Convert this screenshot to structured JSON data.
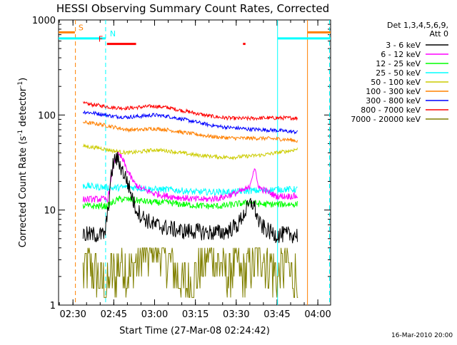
{
  "chart_data": {
    "type": "line",
    "title": "HESSI Observing Summary Count Rates, Corrected",
    "xlabel": "Start Time (27-Mar-08 02:24:42)",
    "ylabel": "Corrected Count Rate (s⁻¹ detector⁻¹)",
    "ylabel_parts": [
      "Corrected Count Rate (s",
      "-1",
      " detector",
      "-1",
      ")"
    ],
    "x_unit": "minutes since 02:24:42",
    "xlim": [
      0,
      100
    ],
    "ylim": [
      1,
      1000
    ],
    "y_scale": "log",
    "x_ticks": [
      {
        "label": "02:30",
        "value": 5.3
      },
      {
        "label": "02:45",
        "value": 20.3
      },
      {
        "label": "03:00",
        "value": 35.3
      },
      {
        "label": "03:15",
        "value": 50.3
      },
      {
        "label": "03:30",
        "value": 65.3
      },
      {
        "label": "03:45",
        "value": 80.3
      },
      {
        "label": "04:00",
        "value": 95.3
      }
    ],
    "y_ticks": [
      {
        "label": "1",
        "value": 1
      },
      {
        "label": "10",
        "value": 10
      },
      {
        "label": "100",
        "value": 100
      },
      {
        "label": "1000",
        "value": 1000
      }
    ],
    "legend": {
      "placement": "right",
      "header": [
        "Det 1,3,4,5,6,9,",
        "Att 0"
      ],
      "entries": [
        {
          "label": "3 - 6 keV",
          "color": "#000000"
        },
        {
          "label": "6 - 12 keV",
          "color": "#ff00ff"
        },
        {
          "label": "12 - 25 keV",
          "color": "#00ff00"
        },
        {
          "label": "25 - 50 keV",
          "color": "#00ffff"
        },
        {
          "label": "50 - 100 keV",
          "color": "#cccc00"
        },
        {
          "label": "100 - 300 keV",
          "color": "#ff8000"
        },
        {
          "label": "300 - 800 keV",
          "color": "#0000ff"
        },
        {
          "label": "800 - 7000 keV",
          "color": "#ff0000"
        },
        {
          "label": "7000 - 20000 keV",
          "color": "#808000"
        }
      ]
    },
    "series": [
      {
        "name": "3 - 6 keV",
        "color": "#000000",
        "x": [
          9,
          14,
          17,
          18,
          19,
          20,
          21,
          22,
          23,
          25,
          26,
          27,
          28,
          29,
          30,
          32,
          35,
          40,
          45,
          50,
          55,
          60,
          62,
          64,
          66,
          67,
          68,
          69,
          70,
          71,
          72,
          73,
          74,
          77,
          80,
          84,
          88
        ],
        "y": [
          5.5,
          5.5,
          5.5,
          9,
          18,
          30,
          35,
          33,
          28,
          21,
          17,
          14,
          11,
          10,
          9,
          8,
          7,
          6.5,
          6,
          6,
          5.8,
          5.8,
          6,
          6.5,
          7,
          8,
          9,
          10,
          11,
          12,
          11,
          8.5,
          7,
          6,
          5.5,
          5.5,
          5.5
        ]
      },
      {
        "name": "6 - 12 keV",
        "color": "#ff00ff",
        "x": [
          9,
          16,
          18,
          19,
          20,
          21,
          22,
          23,
          24,
          25,
          26,
          27,
          28,
          30,
          35,
          40,
          45,
          50,
          55,
          60,
          65,
          70,
          71,
          72,
          73,
          74,
          76,
          78,
          80,
          88
        ],
        "y": [
          13,
          13,
          13,
          18,
          28,
          35,
          38,
          36,
          32,
          27,
          24,
          21,
          19,
          17,
          15,
          14,
          13.5,
          13,
          13,
          13.5,
          15,
          17,
          22,
          28,
          20,
          17,
          16,
          15,
          14,
          14
        ]
      },
      {
        "name": "12 - 25 keV",
        "color": "#00ff00",
        "x": [
          9,
          14,
          18,
          20,
          22,
          25,
          30,
          35,
          40,
          45,
          50,
          55,
          60,
          65,
          70,
          75,
          80,
          88
        ],
        "y": [
          11,
          11,
          11,
          12,
          13,
          13,
          12.5,
          12,
          12,
          11.5,
          11.2,
          11,
          11,
          11.5,
          12,
          11.5,
          11.5,
          11.5
        ]
      },
      {
        "name": "25 - 50 keV",
        "color": "#00ffff",
        "x": [
          9,
          15,
          20,
          25,
          30,
          35,
          40,
          45,
          50,
          55,
          60,
          65,
          70,
          75,
          80,
          88
        ],
        "y": [
          18,
          17.5,
          17,
          17.5,
          17,
          16.5,
          16.5,
          16,
          15.5,
          15.5,
          15.5,
          15.5,
          16,
          16,
          16.5,
          16.5
        ]
      },
      {
        "name": "50 - 100 keV",
        "color": "#cccc00",
        "x": [
          9,
          15,
          20,
          25,
          30,
          35,
          40,
          45,
          50,
          55,
          60,
          65,
          70,
          75,
          80,
          85,
          88
        ],
        "y": [
          47,
          45,
          42,
          40,
          41,
          43,
          42,
          40,
          38,
          37,
          36,
          36,
          37,
          38,
          40,
          42,
          44
        ]
      },
      {
        "name": "100 - 300 keV",
        "color": "#ff8000",
        "x": [
          9,
          15,
          20,
          25,
          30,
          35,
          40,
          45,
          50,
          55,
          60,
          65,
          70,
          75,
          80,
          85,
          88
        ],
        "y": [
          84,
          80,
          75,
          70,
          70,
          72,
          70,
          66,
          63,
          60,
          58,
          57,
          57,
          57,
          56,
          55,
          53
        ]
      },
      {
        "name": "300 - 800 keV",
        "color": "#0000ff",
        "x": [
          9,
          15,
          20,
          25,
          30,
          35,
          40,
          45,
          50,
          55,
          60,
          65,
          70,
          75,
          80,
          85,
          88
        ],
        "y": [
          108,
          103,
          97,
          95,
          97,
          100,
          97,
          91,
          85,
          79,
          75,
          73,
          71,
          70,
          69,
          67,
          66
        ]
      },
      {
        "name": "800 - 7000 keV",
        "color": "#ff0000",
        "x": [
          9,
          15,
          20,
          25,
          30,
          35,
          40,
          45,
          50,
          55,
          60,
          65,
          70,
          75,
          80,
          85,
          88
        ],
        "y": [
          132,
          126,
          120,
          118,
          121,
          124,
          120,
          112,
          105,
          98,
          94,
          92,
          92,
          93,
          93,
          93,
          93
        ]
      },
      {
        "name": "7000 - 20000 keV",
        "color": "#808000",
        "style": "steps",
        "x": [
          9,
          11,
          14,
          17,
          20,
          23,
          26,
          29,
          32,
          35,
          38,
          41,
          44,
          47,
          50,
          53,
          56,
          59,
          62,
          65,
          68,
          71,
          74,
          77,
          80,
          83,
          86,
          88
        ],
        "y": [
          2,
          2.8,
          2,
          1.5,
          2,
          2.8,
          2,
          2.8,
          3.5,
          3.8,
          3.5,
          2.8,
          2,
          1.5,
          2,
          2.8,
          3.5,
          2.8,
          2,
          2.8,
          2,
          2.8,
          3.5,
          2.8,
          2,
          2.8,
          2,
          2
        ]
      }
    ],
    "state_bars": [
      {
        "label": "S",
        "color": "#ff8000",
        "y": 740,
        "segments": [
          [
            0,
            6
          ]
        ]
      },
      {
        "label": "",
        "color": "#ff8000",
        "y": 740,
        "segments": [
          [
            91.5,
            100
          ]
        ]
      },
      {
        "label": "N",
        "color": "#00ffff",
        "y": 640,
        "segments": [
          [
            0,
            17.3
          ]
        ]
      },
      {
        "label": "",
        "color": "#00ffff",
        "y": 640,
        "segments": [
          [
            80.5,
            100
          ]
        ]
      },
      {
        "label": "F",
        "color": "#ff0000",
        "y": 560,
        "segments": [
          [
            17.8,
            28.5
          ],
          [
            67.8,
            68.7
          ]
        ]
      }
    ],
    "vlines": [
      {
        "x": 6.2,
        "color": "#ff8000",
        "dash": true
      },
      {
        "x": 17.3,
        "color": "#00ffff",
        "dash": true
      },
      {
        "x": 80.5,
        "color": "#00ffff",
        "dash": false
      },
      {
        "x": 91.5,
        "color": "#ff8000",
        "dash": false
      },
      {
        "x": 99.6,
        "color": "#00ffff",
        "dash": true
      }
    ],
    "grid": false
  },
  "footer": {
    "date_stamp": "16-Mar-2010 20:00"
  }
}
